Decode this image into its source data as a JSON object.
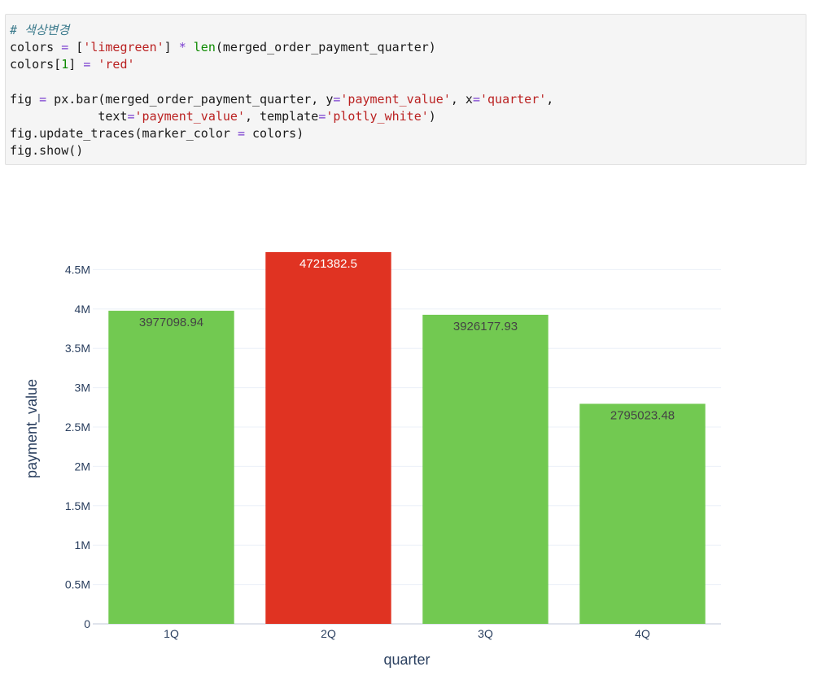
{
  "code": {
    "lines": [
      [
        {
          "t": "# 색상변경",
          "c": "c-comment"
        }
      ],
      [
        {
          "t": "colors "
        },
        {
          "t": "=",
          "c": "c-op"
        },
        {
          "t": " ["
        },
        {
          "t": "'limegreen'",
          "c": "c-str"
        },
        {
          "t": "] "
        },
        {
          "t": "*",
          "c": "c-op"
        },
        {
          "t": " "
        },
        {
          "t": "len",
          "c": "c-fn"
        },
        {
          "t": "(merged_order_payment_quarter)"
        }
      ],
      [
        {
          "t": "colors["
        },
        {
          "t": "1",
          "c": "c-num"
        },
        {
          "t": "] "
        },
        {
          "t": "=",
          "c": "c-op"
        },
        {
          "t": " "
        },
        {
          "t": "'red'",
          "c": "c-str"
        }
      ],
      [
        {
          "t": ""
        }
      ],
      [
        {
          "t": "fig "
        },
        {
          "t": "=",
          "c": "c-op"
        },
        {
          "t": " px.bar(merged_order_payment_quarter, y"
        },
        {
          "t": "=",
          "c": "c-op"
        },
        {
          "t": "'payment_value'",
          "c": "c-str"
        },
        {
          "t": ", x"
        },
        {
          "t": "=",
          "c": "c-op"
        },
        {
          "t": "'quarter'",
          "c": "c-str"
        },
        {
          "t": ","
        }
      ],
      [
        {
          "t": "            text"
        },
        {
          "t": "=",
          "c": "c-op"
        },
        {
          "t": "'payment_value'",
          "c": "c-str"
        },
        {
          "t": ", template"
        },
        {
          "t": "=",
          "c": "c-op"
        },
        {
          "t": "'plotly_white'",
          "c": "c-str"
        },
        {
          "t": ")"
        }
      ],
      [
        {
          "t": "fig.update_traces(marker_color "
        },
        {
          "t": "=",
          "c": "c-op"
        },
        {
          "t": " colors)"
        }
      ],
      [
        {
          "t": "fig.show()"
        }
      ]
    ]
  },
  "chart_data": {
    "type": "bar",
    "categories": [
      "1Q",
      "2Q",
      "3Q",
      "4Q"
    ],
    "values": [
      3977098.94,
      4721382.5,
      3926177.93,
      2795023.48
    ],
    "data_labels": [
      "3977098.94",
      "4721382.5",
      "3926177.93",
      "2795023.48"
    ],
    "colors": [
      "#72c951",
      "#e03322",
      "#72c951",
      "#72c951"
    ],
    "label_colors": [
      "#444444",
      "#ffffff",
      "#444444",
      "#444444"
    ],
    "xlabel": "quarter",
    "ylabel": "payment_value",
    "ylim": [
      0,
      4721382.5
    ],
    "yticks": [
      0,
      500000,
      1000000,
      1500000,
      2000000,
      2500000,
      3000000,
      3500000,
      4000000,
      4500000
    ],
    "ytick_labels": [
      "0",
      "0.5M",
      "1M",
      "1.5M",
      "2M",
      "2.5M",
      "3M",
      "3.5M",
      "4M",
      "4.5M"
    ],
    "grid": true,
    "template": "plotly_white"
  }
}
